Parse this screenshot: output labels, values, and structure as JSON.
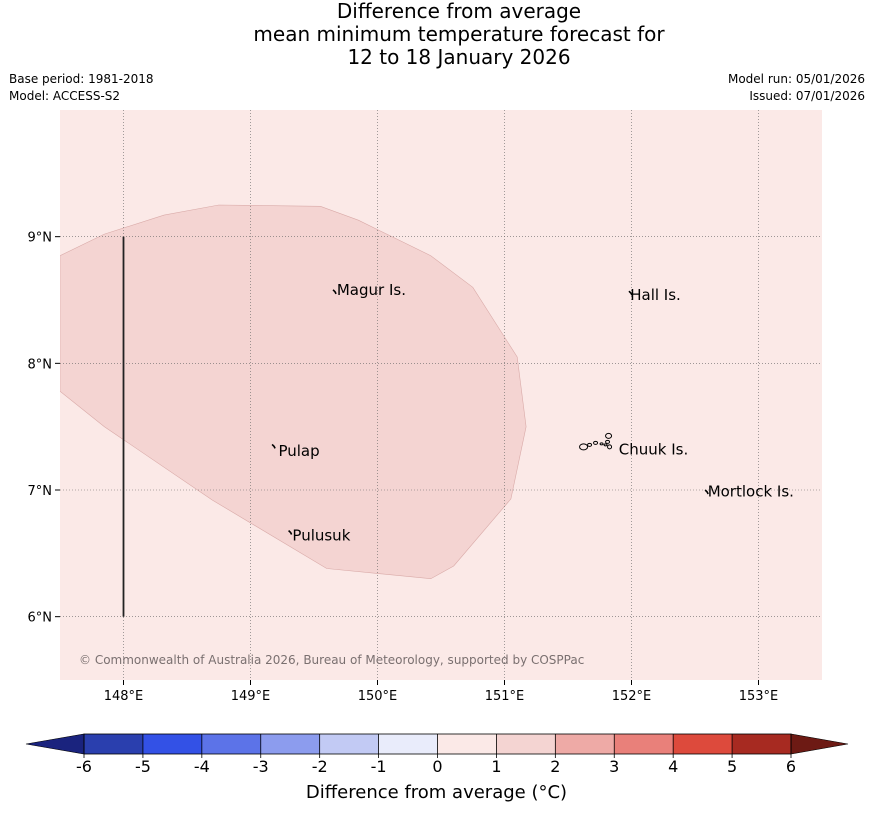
{
  "header": {
    "title_lines": [
      "Difference from average",
      "mean minimum temperature forecast for",
      "12 to 18 January 2026"
    ],
    "base_period": "Base period: 1981-2018",
    "model": "Model: ACCESS-S2",
    "model_run": "Model run: 05/01/2026",
    "issued": "Issued: 07/01/2026"
  },
  "map": {
    "lon_range": [
      147.5,
      153.5
    ],
    "lat_range": [
      5.5,
      10.0
    ],
    "lon_ticks": [
      {
        "value": 148,
        "label": "148°E"
      },
      {
        "value": 149,
        "label": "149°E"
      },
      {
        "value": 150,
        "label": "150°E"
      },
      {
        "value": 151,
        "label": "151°E"
      },
      {
        "value": 152,
        "label": "152°E"
      },
      {
        "value": 153,
        "label": "153°E"
      }
    ],
    "lat_ticks": [
      {
        "value": 6,
        "label": "6°N"
      },
      {
        "value": 7,
        "label": "7°N"
      },
      {
        "value": 8,
        "label": "8°N"
      },
      {
        "value": 9,
        "label": "9°N"
      }
    ],
    "background_category": "0 to 1",
    "background_color": "#fbe9e7",
    "anomaly_region": {
      "category": "1 to 2",
      "color": "#f4d4d2",
      "outline": [
        [
          147.5,
          8.85
        ],
        [
          147.85,
          9.02
        ],
        [
          148.32,
          9.17
        ],
        [
          148.75,
          9.25
        ],
        [
          149.55,
          9.24
        ],
        [
          149.85,
          9.13
        ],
        [
          150.42,
          8.85
        ],
        [
          150.75,
          8.6
        ],
        [
          151.1,
          8.05
        ],
        [
          151.17,
          7.5
        ],
        [
          151.05,
          6.93
        ],
        [
          150.6,
          6.4
        ],
        [
          150.42,
          6.3
        ],
        [
          149.6,
          6.38
        ],
        [
          148.7,
          6.92
        ],
        [
          147.85,
          7.5
        ],
        [
          147.5,
          7.78
        ]
      ]
    },
    "boundary_line": {
      "lon": 148.0,
      "lat_start": 6.0,
      "lat_end": 9.0
    },
    "places": [
      {
        "name": "Magur Is.",
        "lon": 149.65,
        "lat": 8.58,
        "label_lon": 149.68,
        "label_lat": 8.54
      },
      {
        "name": "Hall Is.",
        "lon": 151.98,
        "lat": 8.57,
        "label_lon": 151.99,
        "label_lat": 8.5
      },
      {
        "name": "Pulap",
        "lon": 149.17,
        "lat": 7.36,
        "label_lon": 149.22,
        "label_lat": 7.27
      },
      {
        "name": "Chuuk Is.",
        "lon": 151.78,
        "lat": 7.38,
        "label_lon": 151.9,
        "label_lat": 7.28
      },
      {
        "name": "Mortlock Is.",
        "lon": 152.58,
        "lat": 7.0,
        "label_lon": 152.6,
        "label_lat": 6.95
      },
      {
        "name": "Pulusuk",
        "lon": 149.3,
        "lat": 6.68,
        "label_lon": 149.33,
        "label_lat": 6.6
      }
    ],
    "copyright": "© Commonwealth of Australia 2026, Bureau of Meteorology, supported by COSPPac"
  },
  "colorbar": {
    "min_color": "#1a237e",
    "max_color": "#6d1a14",
    "bins": [
      {
        "from": -6,
        "to": -5,
        "color": "#2a3fae"
      },
      {
        "from": -5,
        "to": -4,
        "color": "#3351e6"
      },
      {
        "from": -4,
        "to": -3,
        "color": "#5c73e8"
      },
      {
        "from": -3,
        "to": -2,
        "color": "#8c9cee"
      },
      {
        "from": -2,
        "to": -1,
        "color": "#c2caf4"
      },
      {
        "from": -1,
        "to": 0,
        "color": "#e9ecfb"
      },
      {
        "from": 0,
        "to": 1,
        "color": "#fbe9e7"
      },
      {
        "from": 1,
        "to": 2,
        "color": "#f4d4d2"
      },
      {
        "from": 2,
        "to": 3,
        "color": "#eeaaa6"
      },
      {
        "from": 3,
        "to": 4,
        "color": "#e9807a"
      },
      {
        "from": 4,
        "to": 5,
        "color": "#dd4a3c"
      },
      {
        "from": 5,
        "to": 6,
        "color": "#a72a21"
      }
    ],
    "tick_labels": [
      "-6",
      "-5",
      "-4",
      "-3",
      "-2",
      "-1",
      "0",
      "1",
      "2",
      "3",
      "4",
      "5",
      "6"
    ],
    "label": "Difference from average (°C)"
  }
}
